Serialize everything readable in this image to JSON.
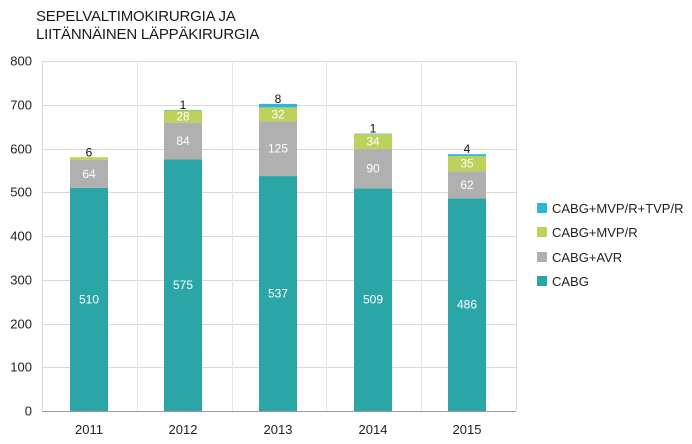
{
  "chart_data": {
    "type": "bar",
    "stacked": true,
    "title_lines": [
      "SEPELVALTIMOKIRURGIA JA",
      "LIITÄNNÄINEN LÄPPÄKIRURGIA"
    ],
    "xlabel": "",
    "ylabel": "",
    "categories": [
      "2011",
      "2012",
      "2013",
      "2014",
      "2015"
    ],
    "ylim": [
      0,
      800
    ],
    "yticks": [
      0,
      100,
      200,
      300,
      400,
      500,
      600,
      700,
      800
    ],
    "grid": true,
    "legend_position": "right",
    "series": [
      {
        "name": "CABG",
        "color": "#2aa6a6",
        "label_color": "#ffffff",
        "values": [
          510,
          575,
          537,
          509,
          486
        ]
      },
      {
        "name": "CABG+AVR",
        "color": "#b0b0b0",
        "label_color": "#ffffff",
        "values": [
          64,
          84,
          125,
          90,
          62
        ]
      },
      {
        "name": "CABG+MVP/R",
        "color": "#bcd25a",
        "label_color": "#ffffff",
        "values": [
          6,
          28,
          32,
          34,
          35
        ]
      },
      {
        "name": "CABG+MVP/R+TVP/R",
        "color": "#2db4e0",
        "label_color": "#111111",
        "values": [
          0,
          1,
          8,
          1,
          4
        ]
      }
    ],
    "legend_order": [
      "CABG+MVP/R+TVP/R",
      "CABG+MVP/R",
      "CABG+AVR",
      "CABG"
    ]
  }
}
